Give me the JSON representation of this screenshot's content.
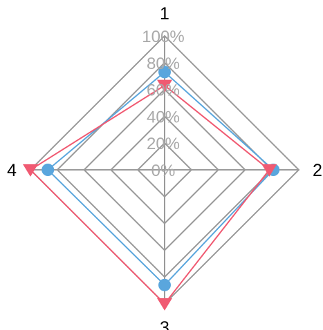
{
  "chart_data": {
    "type": "radar",
    "axes": [
      "1",
      "2",
      "3",
      "4"
    ],
    "r_ticks": [
      "0%",
      "20%",
      "40%",
      "60%",
      "80%",
      "100%"
    ],
    "r_range": [
      0,
      100
    ],
    "grid": true,
    "series": [
      {
        "values": [
          73,
          81,
          86,
          87
        ],
        "color": "#5aa6dd",
        "marker": "circle"
      },
      {
        "values": [
          63,
          78,
          100,
          100
        ],
        "color": "#f05a72",
        "marker": "triangle-down"
      }
    ]
  }
}
